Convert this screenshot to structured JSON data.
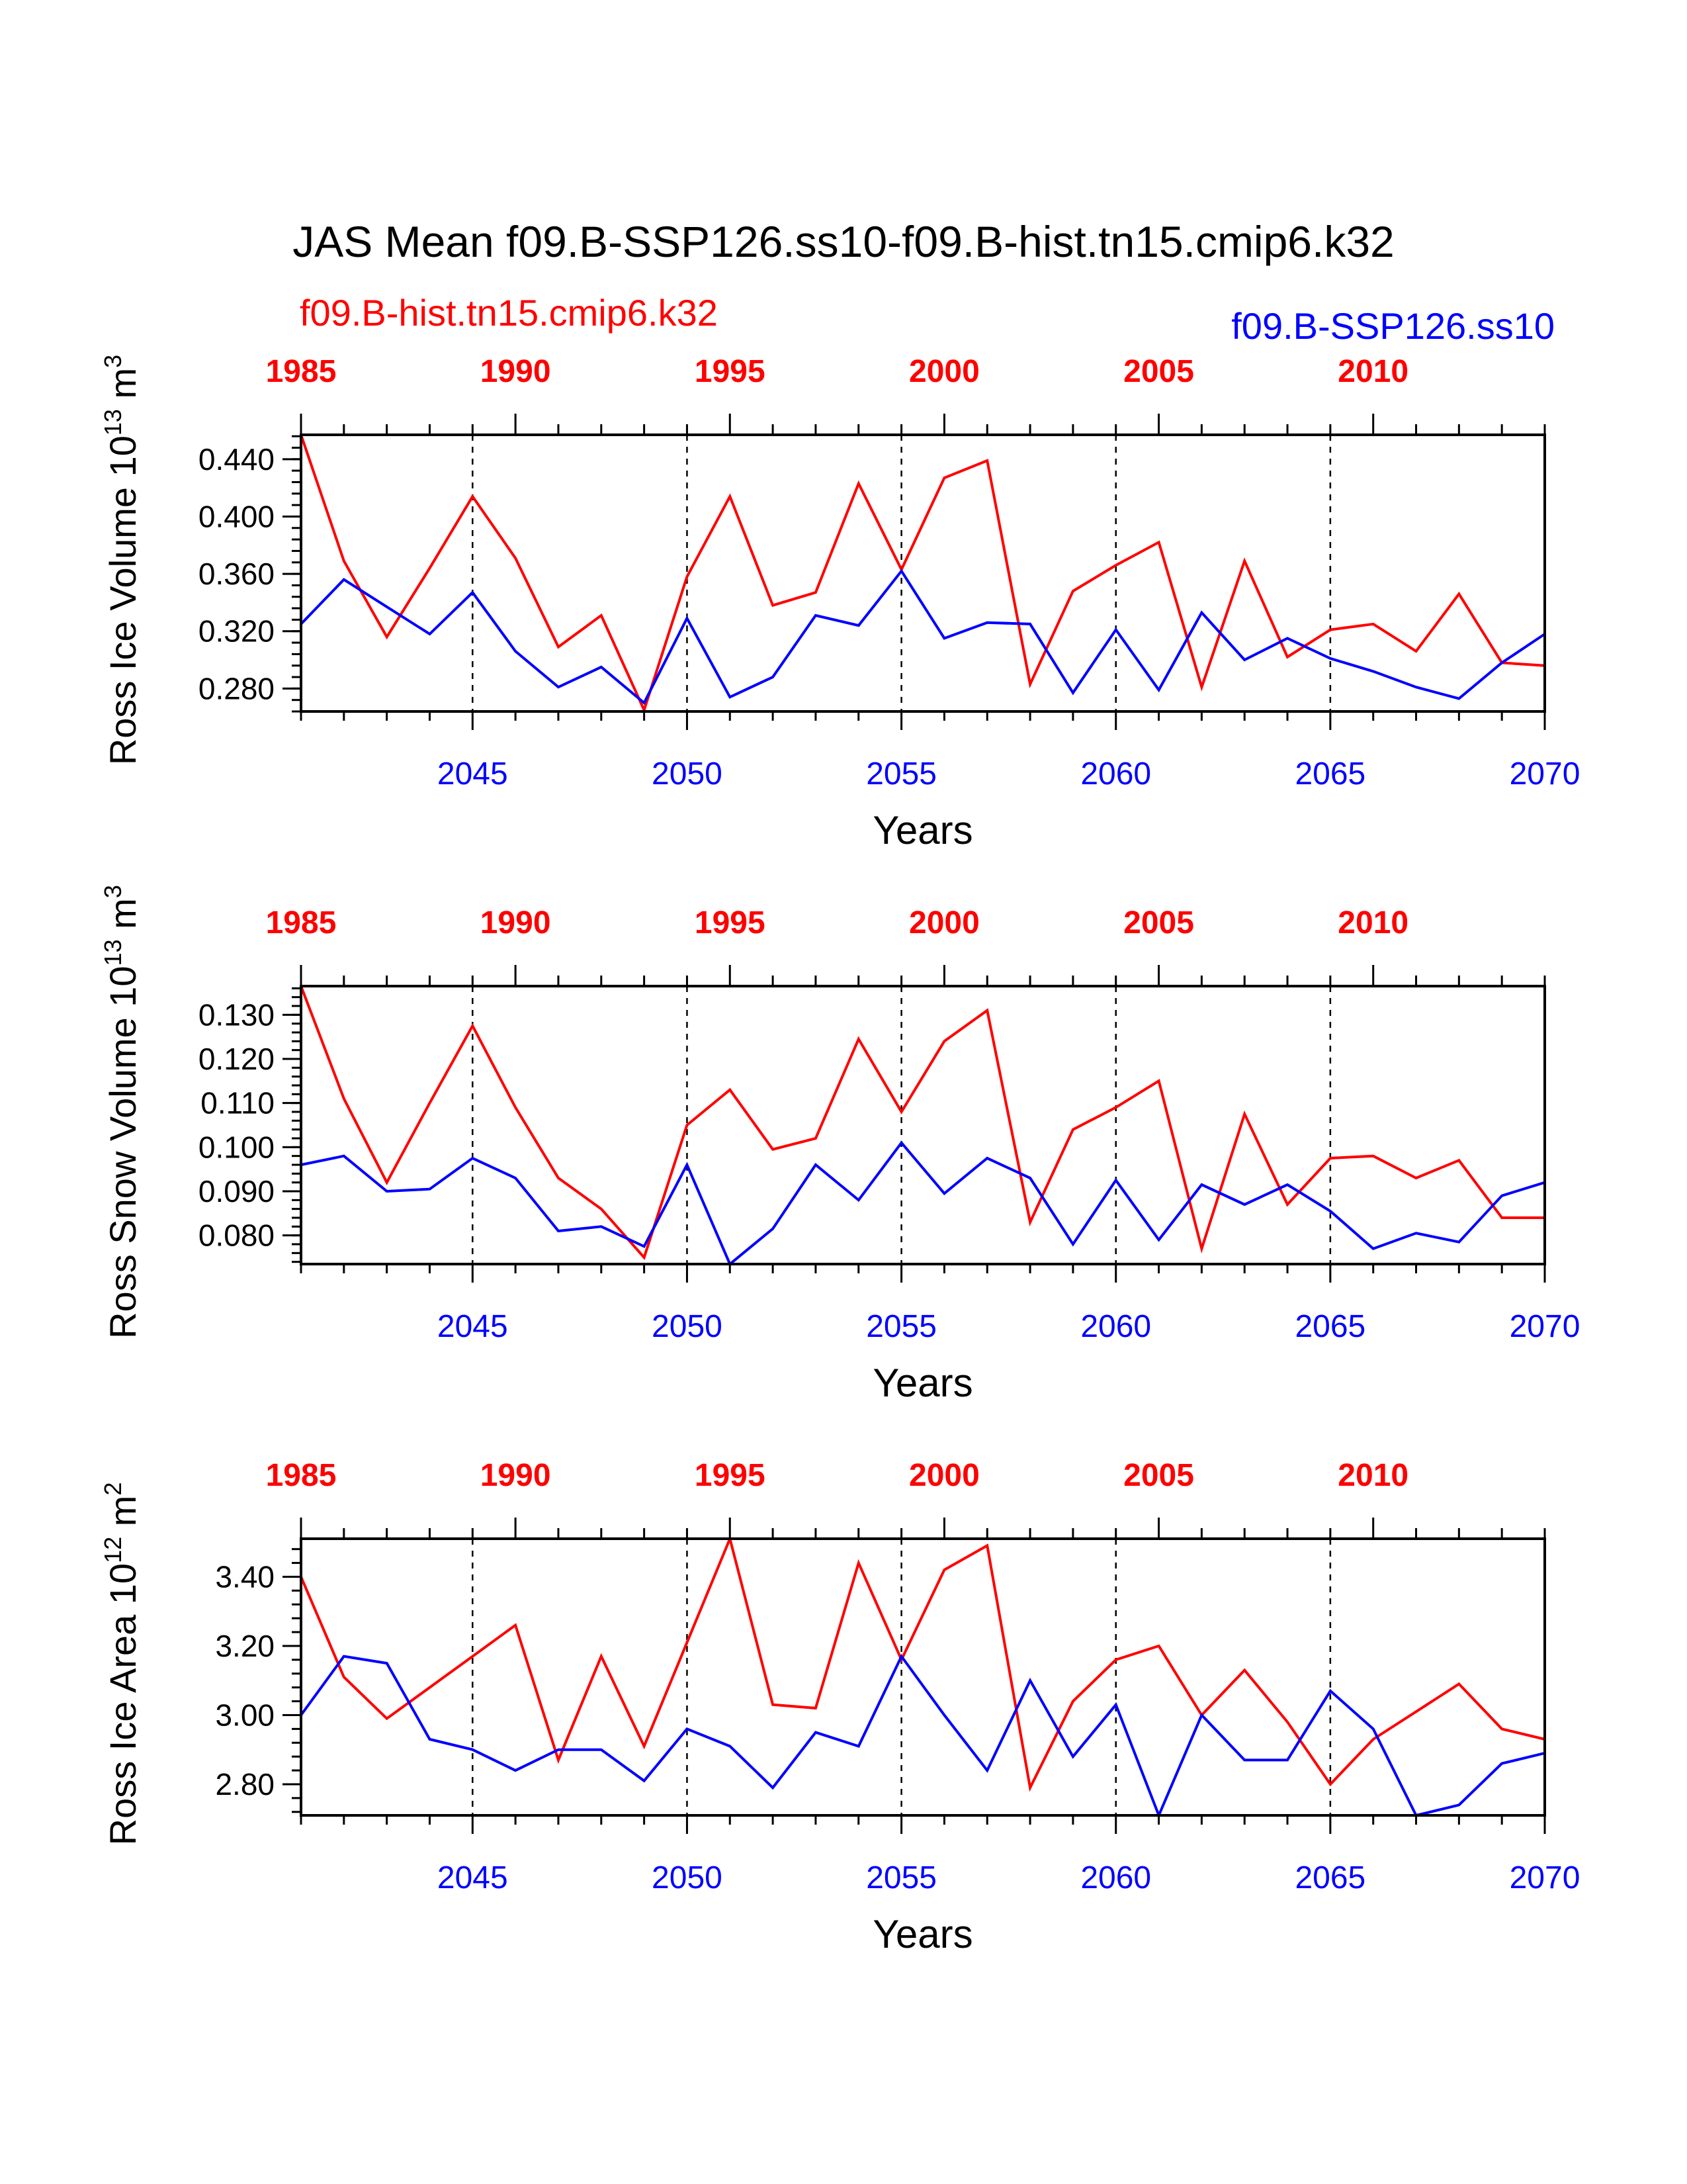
{
  "title": "JAS Mean f09.B-SSP126.ss10-f09.B-hist.tn15.cmip6.k32",
  "legend": {
    "hist_label": "f09.B-hist.tn15.cmip6.k32",
    "ssp_label": "f09.B-SSP126.ss10"
  },
  "colors": {
    "hist": "#ff0000",
    "ssp": "#0000ff",
    "axis": "#000000"
  },
  "chart_data": [
    {
      "type": "line",
      "ylabel_main": "Ross Ice Volume 10",
      "ylabel_exp": "13",
      "ylabel_unit": " m",
      "ylabel_unit_exp": "3",
      "xlabel": "Years",
      "ylim": [
        0.264,
        0.457
      ],
      "yticks": [
        "0.440",
        "0.400",
        "0.360",
        "0.320",
        "0.280"
      ],
      "ytick_values": [
        0.44,
        0.4,
        0.36,
        0.32,
        0.28
      ],
      "bottom_xlim": [
        2041,
        2070
      ],
      "bottom_ticks": [
        "2045",
        "2050",
        "2055",
        "2060",
        "2065",
        "2070"
      ],
      "top_xlim": [
        1985,
        2014
      ],
      "top_ticks": [
        "1985",
        "1990",
        "1995",
        "2000",
        "2005",
        "2010"
      ],
      "series": [
        {
          "name": "f09.B-hist.tn15.cmip6.k32",
          "x": [
            1985,
            1986,
            1987,
            1988,
            1989,
            1990,
            1991,
            1992,
            1993,
            1994,
            1995,
            1996,
            1997,
            1998,
            1999,
            2000,
            2001,
            2002,
            2003,
            2004,
            2005,
            2006,
            2007,
            2008,
            2009,
            2010,
            2011,
            2012,
            2013,
            2014
          ],
          "values": [
            0.457,
            0.369,
            0.316,
            0.364,
            0.414,
            0.371,
            0.309,
            0.331,
            0.265,
            0.358,
            0.414,
            0.338,
            0.347,
            0.423,
            0.363,
            0.427,
            0.439,
            0.283,
            0.348,
            0.366,
            0.382,
            0.281,
            0.369,
            0.302,
            0.321,
            0.325,
            0.306,
            0.346,
            0.298,
            0.296
          ]
        },
        {
          "name": "f09.B-SSP126.ss10",
          "x": [
            2041,
            2042,
            2043,
            2044,
            2045,
            2046,
            2047,
            2048,
            2049,
            2050,
            2051,
            2052,
            2053,
            2054,
            2055,
            2056,
            2057,
            2058,
            2059,
            2060,
            2061,
            2062,
            2063,
            2064,
            2065,
            2066,
            2067,
            2068,
            2069,
            2070
          ],
          "values": [
            0.325,
            0.356,
            0.337,
            0.318,
            0.347,
            0.306,
            0.281,
            0.295,
            0.27,
            0.329,
            0.274,
            0.288,
            0.331,
            0.324,
            0.362,
            0.315,
            0.326,
            0.325,
            0.277,
            0.321,
            0.279,
            0.333,
            0.3,
            0.315,
            0.301,
            0.292,
            0.281,
            0.273,
            0.298,
            0.318
          ]
        }
      ]
    },
    {
      "type": "line",
      "ylabel_main": "Ross Snow Volume 10",
      "ylabel_exp": "13",
      "ylabel_unit": " m",
      "ylabel_unit_exp": "3",
      "xlabel": "Years",
      "ylim": [
        0.0735,
        0.1365
      ],
      "yticks": [
        "0.130",
        "0.120",
        "0.110",
        "0.100",
        "0.090",
        "0.080"
      ],
      "ytick_values": [
        0.13,
        0.12,
        0.11,
        0.1,
        0.09,
        0.08
      ],
      "bottom_xlim": [
        2041,
        2070
      ],
      "bottom_ticks": [
        "2045",
        "2050",
        "2055",
        "2060",
        "2065",
        "2070"
      ],
      "top_xlim": [
        1985,
        2014
      ],
      "top_ticks": [
        "1985",
        "1990",
        "1995",
        "2000",
        "2005",
        "2010"
      ],
      "series": [
        {
          "name": "f09.B-hist.tn15.cmip6.k32",
          "x": [
            1985,
            1986,
            1987,
            1988,
            1989,
            1990,
            1991,
            1992,
            1993,
            1994,
            1995,
            1996,
            1997,
            1998,
            1999,
            2000,
            2001,
            2002,
            2003,
            2004,
            2005,
            2006,
            2007,
            2008,
            2009,
            2010,
            2011,
            2012,
            2013,
            2014
          ],
          "values": [
            0.1365,
            0.111,
            0.092,
            0.11,
            0.1275,
            0.109,
            0.093,
            0.086,
            0.075,
            0.105,
            0.113,
            0.0995,
            0.102,
            0.1245,
            0.108,
            0.124,
            0.131,
            0.083,
            0.104,
            0.109,
            0.115,
            0.077,
            0.1075,
            0.087,
            0.0975,
            0.098,
            0.093,
            0.097,
            0.084,
            0.084
          ]
        },
        {
          "name": "f09.B-SSP126.ss10",
          "x": [
            2041,
            2042,
            2043,
            2044,
            2045,
            2046,
            2047,
            2048,
            2049,
            2050,
            2051,
            2052,
            2053,
            2054,
            2055,
            2056,
            2057,
            2058,
            2059,
            2060,
            2061,
            2062,
            2063,
            2064,
            2065,
            2066,
            2067,
            2068,
            2069,
            2070
          ],
          "values": [
            0.096,
            0.098,
            0.09,
            0.0905,
            0.0975,
            0.093,
            0.081,
            0.082,
            0.0775,
            0.096,
            0.0735,
            0.0815,
            0.096,
            0.088,
            0.101,
            0.0895,
            0.0975,
            0.093,
            0.078,
            0.0925,
            0.079,
            0.0915,
            0.087,
            0.0915,
            0.0855,
            0.077,
            0.0805,
            0.0785,
            0.089,
            0.092
          ]
        }
      ]
    },
    {
      "type": "line",
      "ylabel_main": "Ross Ice Area 10",
      "ylabel_exp": "12",
      "ylabel_unit": " m",
      "ylabel_unit_exp": "2",
      "xlabel": "Years",
      "ylim": [
        2.71,
        3.51
      ],
      "yticks": [
        "3.40",
        "3.20",
        "3.00",
        "2.80"
      ],
      "ytick_values": [
        3.4,
        3.2,
        3.0,
        2.8
      ],
      "bottom_xlim": [
        2041,
        2070
      ],
      "bottom_ticks": [
        "2045",
        "2050",
        "2055",
        "2060",
        "2065",
        "2070"
      ],
      "top_xlim": [
        1985,
        2014
      ],
      "top_ticks": [
        "1985",
        "1990",
        "1995",
        "2000",
        "2005",
        "2010"
      ],
      "series": [
        {
          "name": "f09.B-hist.tn15.cmip6.k32",
          "x": [
            1985,
            1986,
            1987,
            1988,
            1989,
            1990,
            1991,
            1992,
            1993,
            1994,
            1995,
            1996,
            1997,
            1998,
            1999,
            2000,
            2001,
            2002,
            2003,
            2004,
            2005,
            2006,
            2007,
            2008,
            2009,
            2010,
            2011,
            2012,
            2013,
            2014
          ],
          "values": [
            3.4,
            3.11,
            2.99,
            3.08,
            3.17,
            3.26,
            2.87,
            3.17,
            2.91,
            3.21,
            3.51,
            3.03,
            3.02,
            3.44,
            3.16,
            3.42,
            3.49,
            2.79,
            3.04,
            3.16,
            3.2,
            3.0,
            3.13,
            2.98,
            2.8,
            2.93,
            3.01,
            3.09,
            2.96,
            2.93
          ]
        },
        {
          "name": "f09.B-SSP126.ss10",
          "x": [
            2041,
            2042,
            2043,
            2044,
            2045,
            2046,
            2047,
            2048,
            2049,
            2050,
            2051,
            2052,
            2053,
            2054,
            2055,
            2056,
            2057,
            2058,
            2059,
            2060,
            2061,
            2062,
            2063,
            2064,
            2065,
            2066,
            2067,
            2068,
            2069,
            2070
          ],
          "values": [
            3.0,
            3.17,
            3.15,
            2.93,
            2.9,
            2.84,
            2.9,
            2.9,
            2.81,
            2.96,
            2.91,
            2.79,
            2.95,
            2.91,
            3.17,
            3.0,
            2.84,
            3.1,
            2.88,
            3.03,
            2.71,
            3.0,
            2.87,
            2.87,
            3.07,
            2.96,
            2.71,
            2.74,
            2.86,
            2.89
          ]
        }
      ]
    }
  ]
}
